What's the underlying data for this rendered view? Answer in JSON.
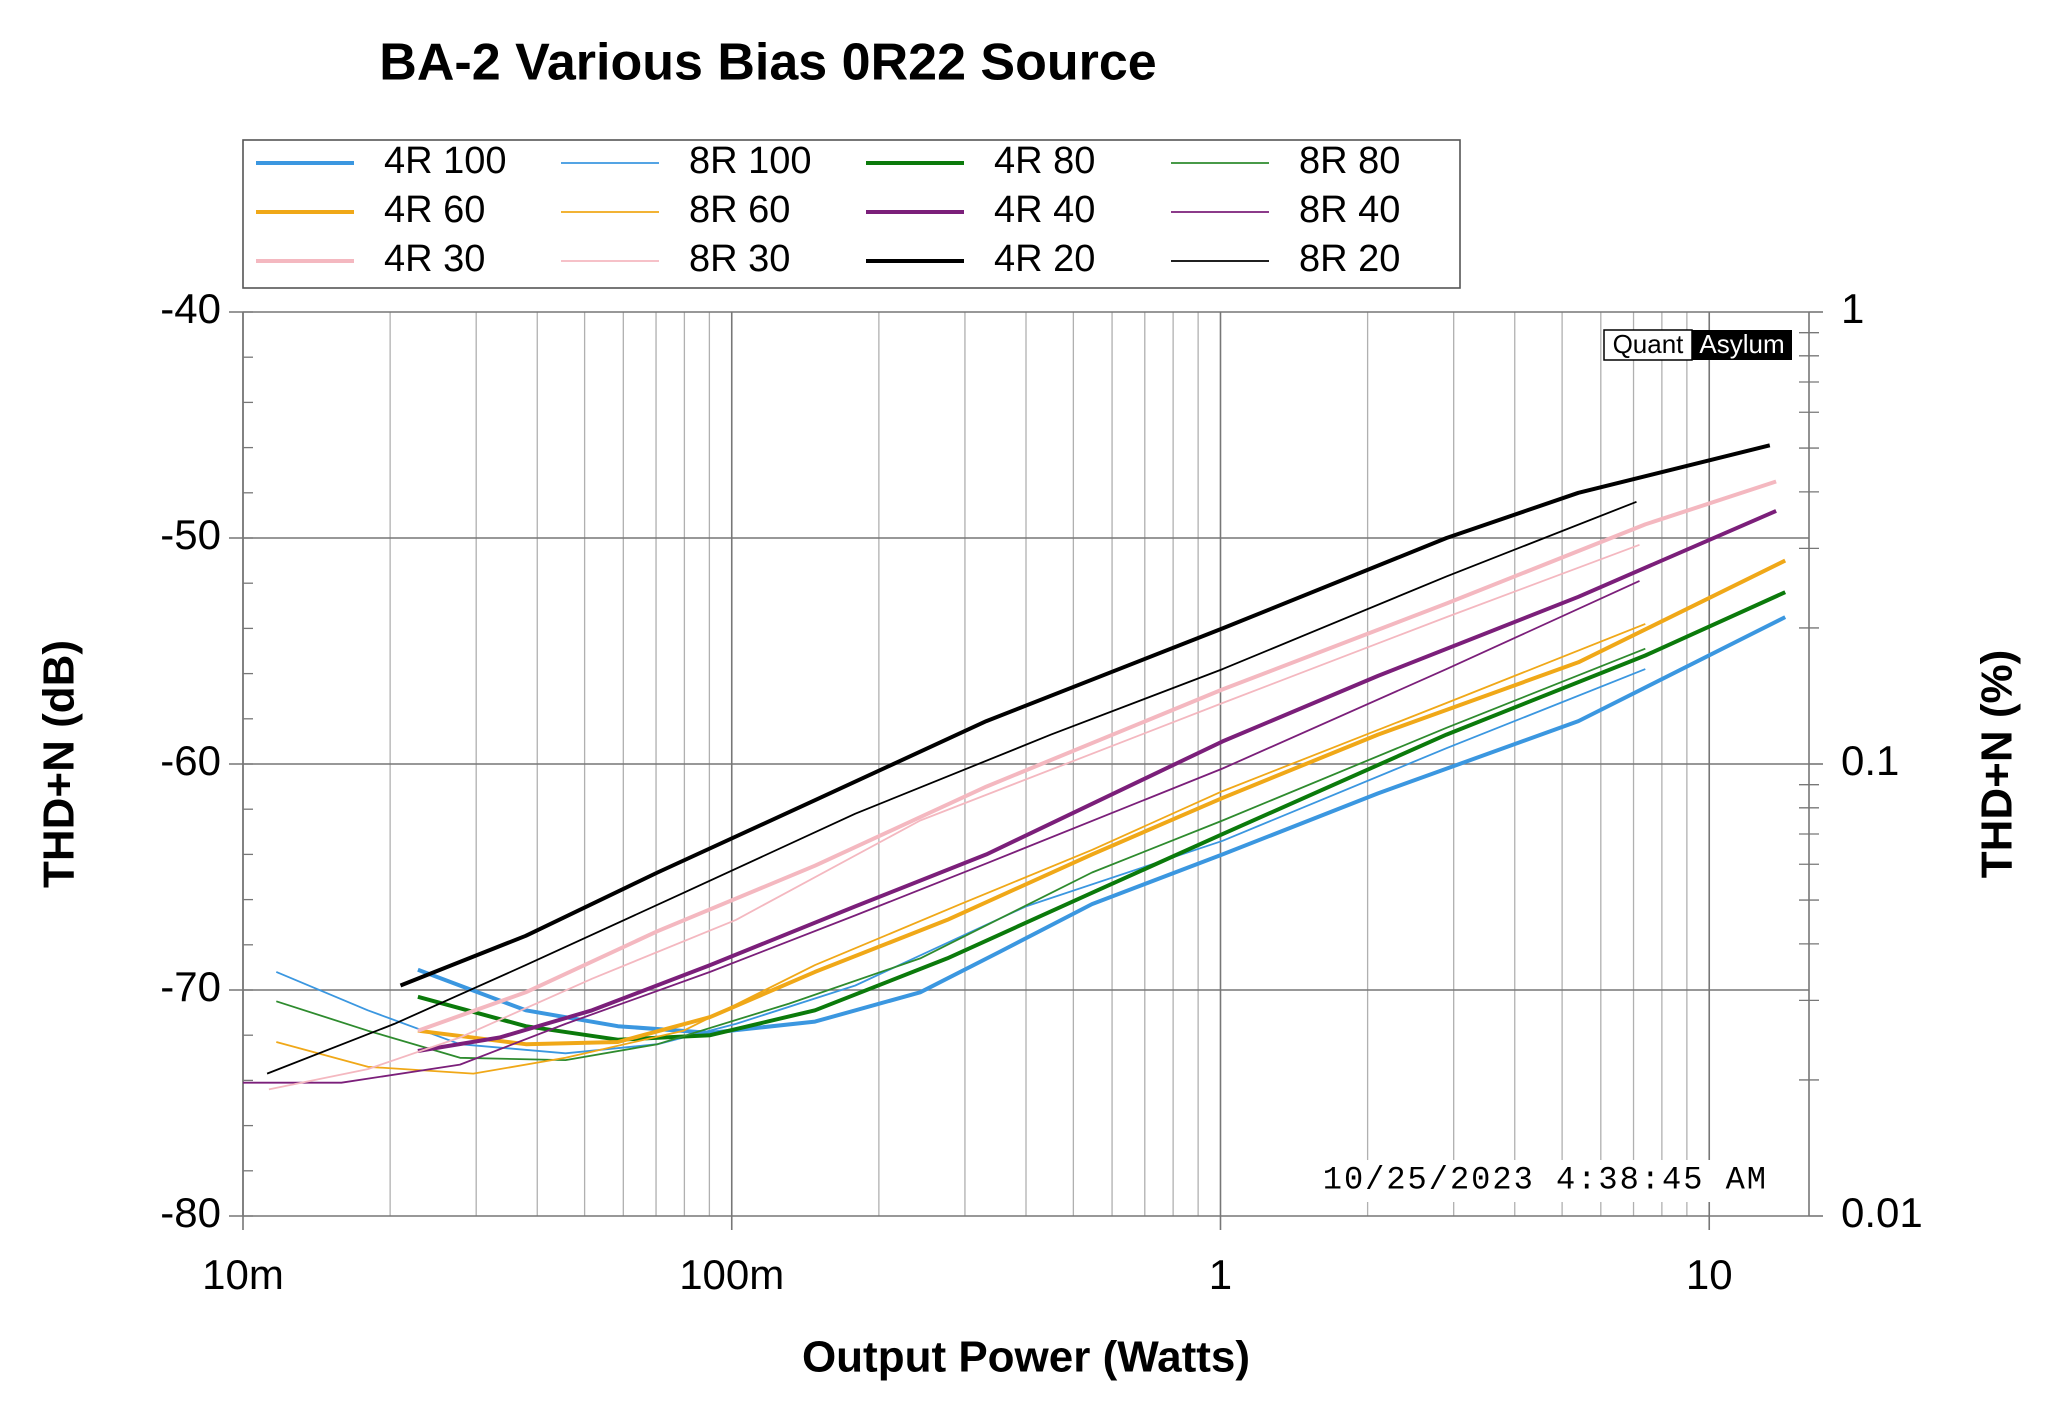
{
  "chart_data": {
    "type": "line",
    "title": "BA-2 Various Bias 0R22 Source",
    "xlabel": "Output Power (Watts)",
    "ylabel": "THD+N (dB)",
    "y2label": "THD+N (%)",
    "xscale": "log",
    "xlim": [
      0.01,
      16
    ],
    "xticks": [
      {
        "value": 0.01,
        "label": "10m"
      },
      {
        "value": 0.1,
        "label": "100m"
      },
      1,
      10
    ],
    "x_minor_grid": true,
    "ylim": [
      -80,
      -40
    ],
    "yticks": [
      -80,
      -70,
      -60,
      -50,
      -40
    ],
    "y_minor_step": 2,
    "y2scale": "log",
    "y2lim": [
      0.01,
      1
    ],
    "y2ticks": [
      0.01,
      0.1,
      1
    ],
    "grid": true,
    "legend": "top",
    "logo": [
      "Quant",
      "Asylum"
    ],
    "timestamp": "10/25/2023 4:38:45 AM",
    "series": [
      {
        "name": "4R 100",
        "color": "#3b97e0",
        "line_width": 4,
        "x": [
          0.0228,
          0.0379,
          0.0585,
          0.0903,
          0.148,
          0.243,
          0.354,
          0.546,
          1.01,
          2.1,
          5.4,
          14.3
        ],
        "values": [
          -69.1,
          -70.9,
          -71.6,
          -71.9,
          -71.4,
          -70.1,
          -68.3,
          -66.2,
          -64.0,
          -61.3,
          -58.1,
          -53.5
        ]
      },
      {
        "name": "8R 100",
        "color": "#3b97e0",
        "line_width": 1.8,
        "x": [
          0.0117,
          0.018,
          0.0278,
          0.0457,
          0.0705,
          0.102,
          0.179,
          0.4,
          1.01,
          2.9,
          7.4
        ],
        "values": [
          -69.2,
          -70.9,
          -72.4,
          -72.8,
          -72.4,
          -71.5,
          -69.8,
          -66.3,
          -63.4,
          -59.3,
          -55.8
        ]
      },
      {
        "name": "4R 80",
        "color": "#0b7a0b",
        "line_width": 4,
        "x": [
          0.0228,
          0.0379,
          0.0585,
          0.0903,
          0.148,
          0.276,
          0.546,
          1.01,
          2.9,
          7.4,
          14.3
        ],
        "values": [
          -70.3,
          -71.6,
          -72.2,
          -72.0,
          -70.9,
          -68.6,
          -65.7,
          -63.1,
          -58.7,
          -55.2,
          -52.4
        ]
      },
      {
        "name": "8R 80",
        "color": "#2e8b2e",
        "line_width": 1.8,
        "x": [
          0.0117,
          0.018,
          0.0278,
          0.0457,
          0.0705,
          0.131,
          0.243,
          0.546,
          1.01,
          2.9,
          7.4
        ],
        "values": [
          -70.5,
          -71.8,
          -73.0,
          -73.1,
          -72.4,
          -70.6,
          -68.6,
          -64.8,
          -62.5,
          -58.4,
          -54.9
        ]
      },
      {
        "name": "4R 60",
        "color": "#f0a818",
        "line_width": 4,
        "x": [
          0.0228,
          0.0379,
          0.0585,
          0.0903,
          0.148,
          0.276,
          0.546,
          1.01,
          2.1,
          5.4,
          14.3
        ],
        "values": [
          -71.8,
          -72.4,
          -72.3,
          -71.2,
          -69.2,
          -66.9,
          -64.0,
          -61.5,
          -58.7,
          -55.5,
          -51.0
        ]
      },
      {
        "name": "8R 60",
        "color": "#f0a818",
        "line_width": 1.8,
        "x": [
          0.0117,
          0.018,
          0.0296,
          0.0457,
          0.0797,
          0.148,
          0.294,
          0.546,
          1.01,
          2.9,
          7.4
        ],
        "values": [
          -72.3,
          -73.4,
          -73.7,
          -73.0,
          -71.8,
          -68.9,
          -66.2,
          -63.8,
          -61.2,
          -57.3,
          -53.8
        ]
      },
      {
        "name": "4R 40",
        "color": "#7b1f7a",
        "line_width": 4,
        "x": [
          0.0228,
          0.0335,
          0.0518,
          0.0903,
          0.179,
          0.332,
          1.01,
          2.1,
          5.4,
          13.7
        ],
        "values": [
          -72.7,
          -72.1,
          -70.9,
          -68.9,
          -66.3,
          -64.0,
          -59.0,
          -56.1,
          -52.6,
          -48.8
        ]
      },
      {
        "name": "8R 40",
        "color": "#7b1f7a",
        "line_width": 1.8,
        "x": [
          0.01,
          0.0159,
          0.0278,
          0.0457,
          0.0903,
          0.179,
          0.332,
          1.01,
          2.9,
          7.2
        ],
        "values": [
          -74.1,
          -74.1,
          -73.3,
          -71.5,
          -69.2,
          -66.7,
          -64.4,
          -60.2,
          -55.8,
          -51.9
        ]
      },
      {
        "name": "4R 30",
        "color": "#f4b8c0",
        "line_width": 4,
        "x": [
          0.0228,
          0.0379,
          0.0705,
          0.148,
          0.332,
          1.01,
          2.9,
          7.4,
          13.7
        ],
        "values": [
          -71.8,
          -70.1,
          -67.4,
          -64.5,
          -61.0,
          -56.7,
          -52.9,
          -49.4,
          -47.5
        ]
      },
      {
        "name": "8R 30",
        "color": "#f4b8c0",
        "line_width": 1.8,
        "x": [
          0.0113,
          0.018,
          0.0278,
          0.0518,
          0.102,
          0.243,
          1.01,
          2.9,
          7.2
        ],
        "values": [
          -74.4,
          -73.5,
          -72.1,
          -69.5,
          -66.9,
          -62.5,
          -57.3,
          -53.5,
          -50.3
        ]
      },
      {
        "name": "4R 20",
        "color": "#000000",
        "line_width": 4,
        "x": [
          0.021,
          0.0379,
          0.0705,
          0.148,
          0.332,
          1.01,
          2.9,
          5.4,
          13.3
        ],
        "values": [
          -69.8,
          -67.6,
          -64.8,
          -61.6,
          -58.1,
          -54.0,
          -50.0,
          -48.0,
          -45.9
        ]
      },
      {
        "name": "8R 20",
        "color": "#000000",
        "line_width": 1.8,
        "x": [
          0.0112,
          0.0204,
          0.0379,
          0.0797,
          0.179,
          0.45,
          1.01,
          2.9,
          7.1
        ],
        "values": [
          -73.7,
          -71.5,
          -68.9,
          -65.7,
          -62.2,
          -58.7,
          -55.8,
          -51.7,
          -48.4
        ]
      }
    ]
  }
}
